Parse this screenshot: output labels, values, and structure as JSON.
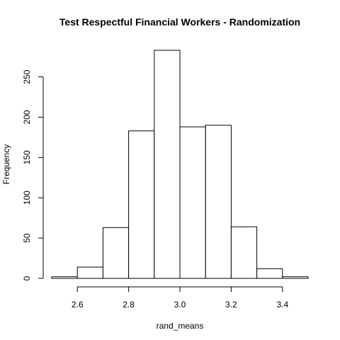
{
  "chart_data": {
    "type": "bar",
    "title": "Test Respectful Financial Workers - Randomization",
    "xlabel": "rand_means",
    "ylabel": "Frequency",
    "bins": [
      {
        "from": 2.5,
        "to": 2.6,
        "count": 2
      },
      {
        "from": 2.6,
        "to": 2.7,
        "count": 14
      },
      {
        "from": 2.7,
        "to": 2.8,
        "count": 63
      },
      {
        "from": 2.8,
        "to": 2.9,
        "count": 183
      },
      {
        "from": 2.9,
        "to": 3.0,
        "count": 283
      },
      {
        "from": 3.0,
        "to": 3.1,
        "count": 188
      },
      {
        "from": 3.1,
        "to": 3.2,
        "count": 190
      },
      {
        "from": 3.2,
        "to": 3.3,
        "count": 64
      },
      {
        "from": 3.3,
        "to": 3.4,
        "count": 12
      },
      {
        "from": 3.4,
        "to": 3.5,
        "count": 2
      }
    ],
    "xlim": [
      2.5,
      3.5
    ],
    "ylim": [
      0,
      283
    ],
    "x_ticks": [
      2.6,
      2.8,
      3.0,
      3.2,
      3.4
    ],
    "x_tick_labels": [
      "2.6",
      "2.8",
      "3.0",
      "3.2",
      "3.4"
    ],
    "y_ticks": [
      0,
      50,
      100,
      150,
      200,
      250
    ],
    "y_tick_labels": [
      "0",
      "50",
      "100",
      "150",
      "200",
      "250"
    ],
    "grid": false,
    "legend": false
  }
}
